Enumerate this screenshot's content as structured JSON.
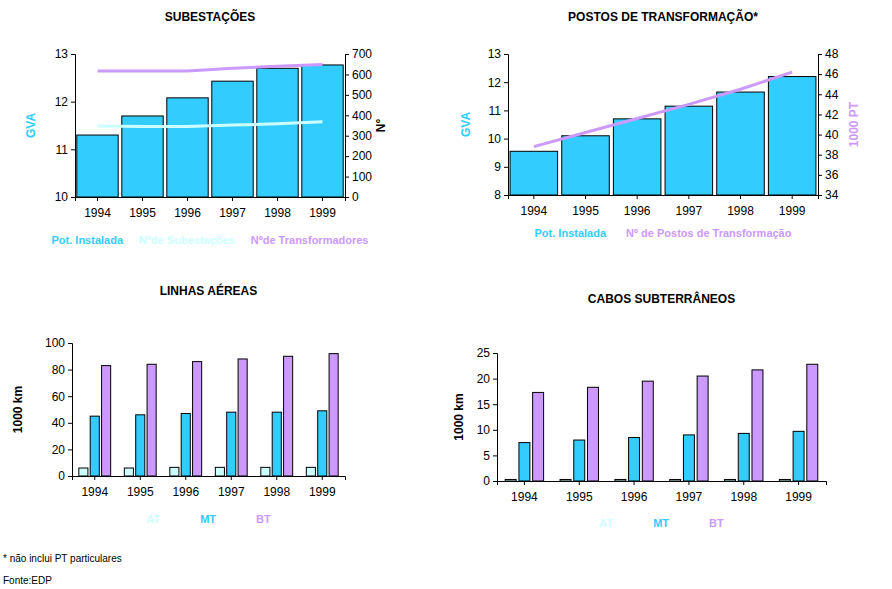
{
  "chart_data": [
    {
      "type": "bar",
      "title": "SUBESTAÇÕES",
      "categories": [
        "1994",
        "1995",
        "1996",
        "1997",
        "1998",
        "1999"
      ],
      "series": [
        {
          "name": "Pot. Instalada",
          "type": "bar",
          "color": "#33ccff",
          "values": [
            11.3,
            11.7,
            12.08,
            12.43,
            12.7,
            12.77
          ]
        },
        {
          "name": "Nºde Subestações",
          "type": "line",
          "axis": "y2",
          "color": "#ccffff",
          "values": [
            348,
            345,
            345,
            352,
            358,
            368
          ]
        },
        {
          "name": "Nºde Transformadores",
          "type": "line",
          "axis": "y2",
          "color": "#cc99ff",
          "values": [
            617,
            617,
            617,
            630,
            640,
            648
          ]
        }
      ],
      "y_label": "GVA",
      "y2_label": "N°",
      "ylim": [
        10,
        13
      ],
      "yticks": [
        10,
        11,
        12,
        13
      ],
      "y2lim": [
        0,
        700
      ],
      "y2ticks": [
        0,
        100,
        200,
        300,
        400,
        500,
        600,
        700
      ],
      "grid": false,
      "legend": "bottom"
    },
    {
      "type": "bar",
      "title": "POSTOS DE TRANSFORMAÇÃO*",
      "categories": [
        "1994",
        "1995",
        "1996",
        "1997",
        "1998",
        "1999"
      ],
      "series": [
        {
          "name": "Pot. Instalada",
          "type": "bar",
          "color": "#33ccff",
          "values": [
            9.55,
            10.1,
            10.7,
            11.15,
            11.65,
            12.2
          ]
        },
        {
          "name": "Nº de Postos de Transformação",
          "type": "line",
          "axis": "y2",
          "color": "#cc99ff",
          "values": [
            38.8,
            40.2,
            41.6,
            43.0,
            44.5,
            46.2
          ]
        }
      ],
      "y_label": "GVA",
      "y2_label": "1000 PT",
      "ylim": [
        8,
        13
      ],
      "yticks": [
        8,
        9,
        10,
        11,
        12,
        13
      ],
      "y2lim": [
        34,
        48
      ],
      "y2ticks": [
        34,
        36,
        38,
        40,
        42,
        44,
        46,
        48
      ],
      "grid": false,
      "legend": "bottom"
    },
    {
      "type": "bar",
      "title": "LINHAS AÉREAS",
      "categories": [
        "1994",
        "1995",
        "1996",
        "1997",
        "1998",
        "1999"
      ],
      "series": [
        {
          "name": "AT",
          "color": "#ccffff",
          "values": [
            6,
            6,
            6.5,
            6.5,
            6.5,
            6.5
          ]
        },
        {
          "name": "MT",
          "color": "#33ccff",
          "values": [
            45,
            46,
            47,
            48,
            48,
            49
          ]
        },
        {
          "name": "BT",
          "color": "#cc99ff",
          "values": [
            83,
            84,
            86,
            88,
            90,
            92
          ]
        }
      ],
      "y_label": "1000 km",
      "ylim": [
        0,
        100
      ],
      "yticks": [
        0,
        20,
        40,
        60,
        80,
        100
      ],
      "grid": false,
      "legend": "bottom"
    },
    {
      "type": "bar",
      "title": "CABOS SUBTERRÂNEOS",
      "categories": [
        "1994",
        "1995",
        "1996",
        "1997",
        "1998",
        "1999"
      ],
      "series": [
        {
          "name": "AT",
          "color": "#ccffff",
          "values": [
            0.3,
            0.3,
            0.3,
            0.3,
            0.3,
            0.3
          ]
        },
        {
          "name": "MT",
          "color": "#33ccff",
          "values": [
            7.5,
            8,
            8.5,
            9,
            9.3,
            9.7
          ]
        },
        {
          "name": "BT",
          "color": "#cc99ff",
          "values": [
            17.3,
            18.3,
            19.5,
            20.5,
            21.7,
            22.8
          ]
        }
      ],
      "y_label": "1000 km",
      "ylim": [
        0,
        25
      ],
      "yticks": [
        0,
        5,
        10,
        15,
        20,
        25
      ],
      "grid": false,
      "legend": "bottom"
    }
  ],
  "notes": [
    "* não inclui PT particulares",
    "Fonte:EDP"
  ]
}
